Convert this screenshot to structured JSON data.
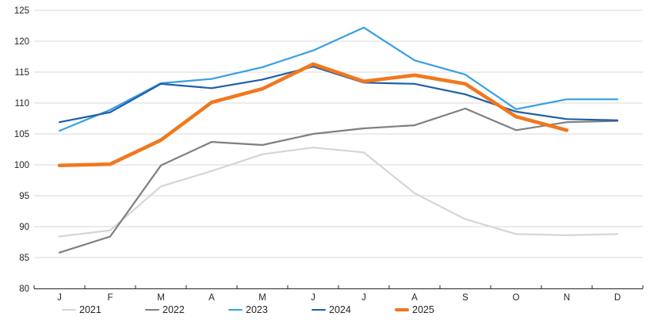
{
  "chart_data": {
    "type": "line",
    "title": "",
    "x_categories": [
      "J",
      "F",
      "M",
      "A",
      "M",
      "J",
      "J",
      "A",
      "S",
      "O",
      "N",
      "D"
    ],
    "y_tick_labels": [
      "125",
      "120",
      "115",
      "110",
      "105",
      "100",
      "95",
      "90",
      "85",
      "80"
    ],
    "ylim": [
      80,
      125
    ],
    "ytick_step": 5,
    "grid": true,
    "legend_position": "bottom",
    "series": [
      {
        "name": "2021",
        "color": "#D6D6D6",
        "stroke_width": 2.2,
        "values": [
          88.4,
          89.4,
          96.5,
          99.0,
          101.7,
          102.8,
          102.0,
          95.4,
          91.2,
          88.8,
          88.6,
          88.8
        ]
      },
      {
        "name": "2022",
        "color": "#808080",
        "stroke_width": 2.2,
        "values": [
          85.8,
          88.4,
          99.9,
          103.7,
          103.2,
          105.0,
          105.9,
          106.4,
          109.1,
          105.6,
          106.9,
          107.1
        ]
      },
      {
        "name": "2023",
        "color": "#38A0E3",
        "stroke_width": 2.2,
        "values": [
          105.5,
          108.9,
          113.2,
          113.9,
          115.8,
          118.5,
          122.2,
          116.9,
          114.6,
          109.0,
          110.6,
          110.6
        ]
      },
      {
        "name": "2024",
        "color": "#1F5FA8",
        "stroke_width": 2.2,
        "values": [
          106.9,
          108.5,
          113.1,
          112.4,
          113.8,
          115.9,
          113.3,
          113.1,
          111.4,
          108.6,
          107.4,
          107.2
        ]
      },
      {
        "name": "2025",
        "color": "#F0781E",
        "stroke_width": 4.5,
        "values": [
          99.9,
          100.1,
          104.0,
          110.1,
          112.3,
          116.3,
          113.5,
          114.5,
          113.1,
          107.8,
          105.6
        ]
      }
    ]
  },
  "style": {
    "gridline_color": "#D9D9D9",
    "axis_line_color": "#262626",
    "tick_color": "#262626",
    "label_color": "#262626",
    "background": "#FFFFFF"
  }
}
